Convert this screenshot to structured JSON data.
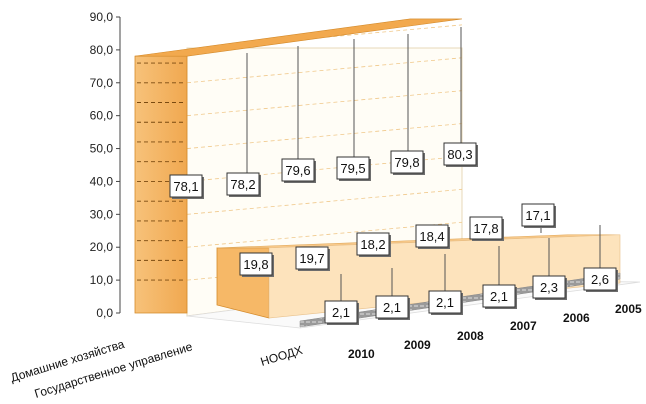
{
  "chart_data": {
    "type": "area",
    "y_ticks": [
      "0,0",
      "10,0",
      "20,0",
      "30,0",
      "40,0",
      "50,0",
      "60,0",
      "70,0",
      "80,0",
      "90,0"
    ],
    "ylim": [
      0,
      90
    ],
    "x_years": [
      "2010",
      "2009",
      "2008",
      "2007",
      "2006",
      "2005"
    ],
    "series": [
      {
        "name": "Домашние хозяйства",
        "values": [
          78.1,
          78.2,
          79.6,
          79.5,
          79.8,
          80.3
        ],
        "labels": [
          "78,1",
          "78,2",
          "79,6",
          "79,5",
          "79,8",
          "80,3"
        ],
        "color": "#f5b66a"
      },
      {
        "name": "Государственное управление",
        "values": [
          19.8,
          19.7,
          18.2,
          18.4,
          17.8,
          17.1
        ],
        "labels": [
          "19,8",
          "19,7",
          "18,2",
          "18,4",
          "17,8",
          "17,1"
        ],
        "color": "#fcd9a3"
      },
      {
        "name": "НООДХ",
        "values": [
          2.1,
          2.1,
          2.1,
          2.1,
          2.3,
          2.6
        ],
        "labels": [
          "2,1",
          "2,1",
          "2,1",
          "2,1",
          "2,3",
          "2,6"
        ],
        "color": "#8c8c8c"
      }
    ]
  }
}
